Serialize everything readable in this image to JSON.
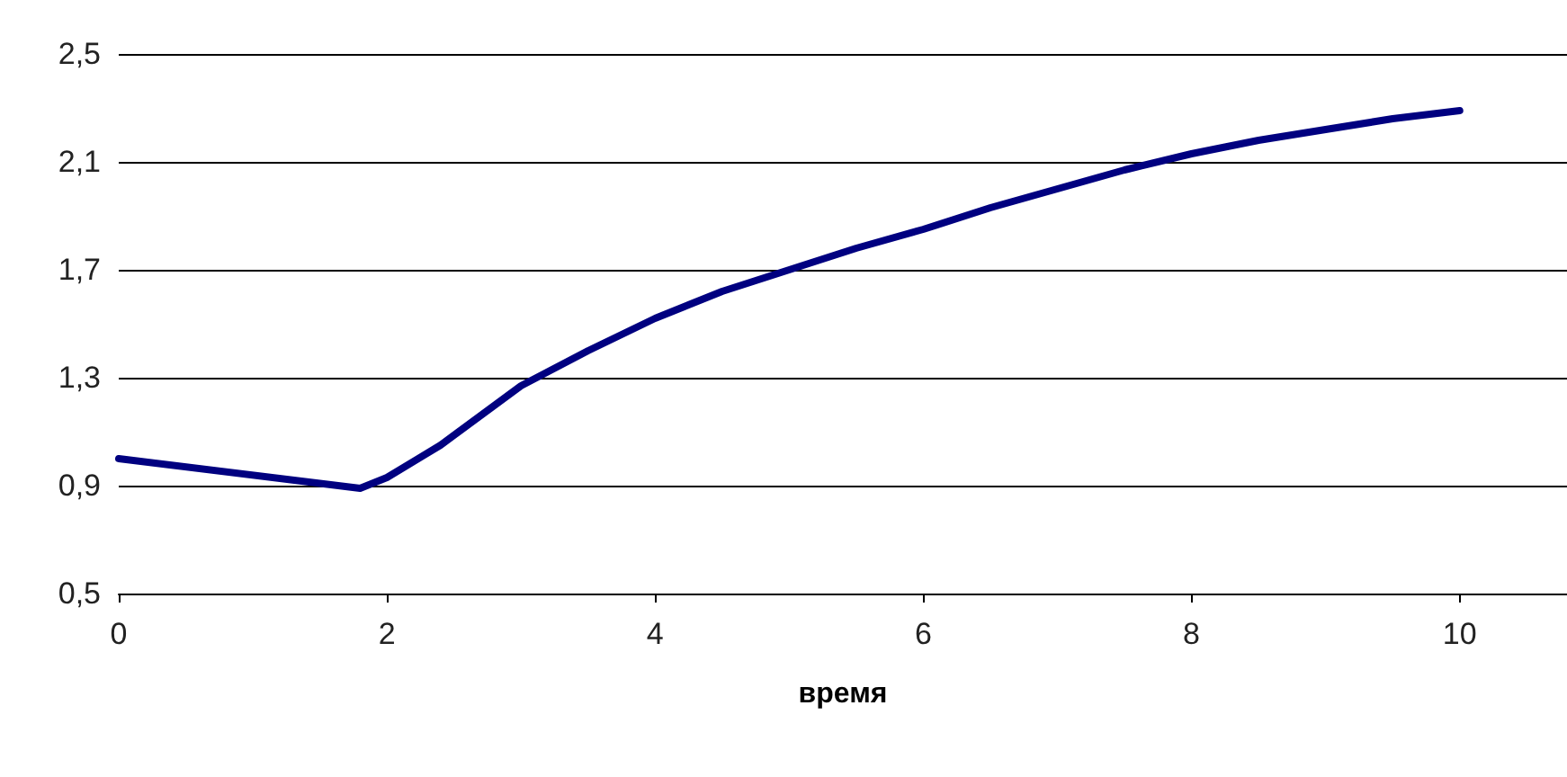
{
  "chart_data": {
    "type": "line",
    "xlabel": "время",
    "x": [
      0,
      1.8,
      2,
      2.4,
      3,
      3.5,
      4,
      4.5,
      5,
      5.5,
      6,
      6.5,
      7,
      7.5,
      8,
      8.5,
      9,
      9.5,
      10
    ],
    "series": [
      {
        "color": "#000080",
        "values": [
          1.0,
          0.89,
          0.93,
          1.05,
          1.27,
          1.4,
          1.52,
          1.62,
          1.7,
          1.78,
          1.85,
          1.93,
          2.0,
          2.07,
          2.13,
          2.18,
          2.22,
          2.26,
          2.29
        ]
      }
    ],
    "xlim": [
      0,
      10.8
    ],
    "xticks": [
      0,
      2,
      4,
      6,
      8,
      10
    ],
    "ylim": [
      0.5,
      2.5
    ],
    "yticks": [
      {
        "value": 0.5,
        "label": "0,5"
      },
      {
        "value": 0.9,
        "label": "0,9"
      },
      {
        "value": 1.3,
        "label": "1,3"
      },
      {
        "value": 1.7,
        "label": "1,7"
      },
      {
        "value": 2.1,
        "label": "2,1"
      },
      {
        "value": 2.5,
        "label": "2,5"
      }
    ],
    "grid": "y",
    "marker": "none",
    "line_style": "solid"
  }
}
